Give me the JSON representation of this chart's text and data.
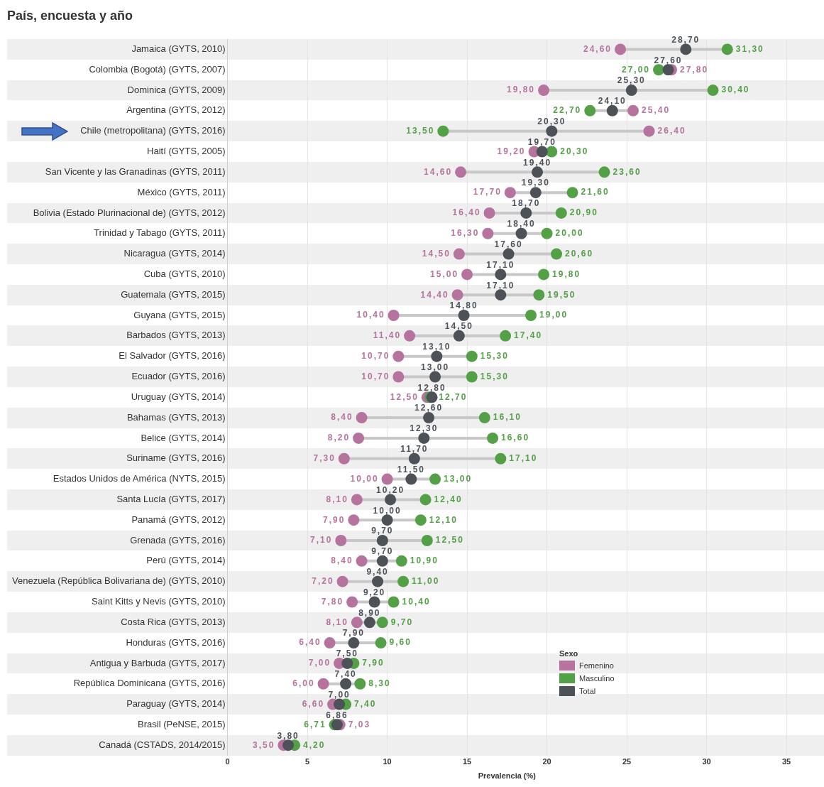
{
  "chart_data": {
    "type": "scatter",
    "orientation": "horizontal",
    "ylabel": "País, encuesta y año",
    "xlabel": "Prevalencia (%)",
    "legend_title": "Sexo",
    "legend": "bottom right",
    "grid": "x",
    "marker": "circle",
    "xlim": [
      0,
      35
    ],
    "xticks": [
      0,
      5,
      10,
      15,
      20,
      25,
      30,
      35
    ],
    "categories": [
      "Jamaica (GYTS, 2010)",
      "Colombia (Bogotá) (GYTS, 2007)",
      "Dominica (GYTS, 2009)",
      "Argentina (GYTS, 2012)",
      "Chile (metropolitana) (GYTS, 2016)",
      "Haití (GYTS, 2005)",
      "San Vicente y las Granadinas (GYTS, 2011)",
      "México (GYTS, 2011)",
      "Bolivia (Estado Plurinacional de) (GYTS, 2012)",
      "Trinidad y Tabago (GYTS, 2011)",
      "Nicaragua (GYTS, 2014)",
      "Cuba (GYTS, 2010)",
      "Guatemala (GYTS, 2015)",
      "Guyana (GYTS, 2015)",
      "Barbados (GYTS, 2013)",
      "El Salvador (GYTS, 2016)",
      "Ecuador (GYTS, 2016)",
      "Uruguay (GYTS, 2014)",
      "Bahamas (GYTS, 2013)",
      "Belice (GYTS, 2014)",
      "Suriname (GYTS, 2016)",
      "Estados Unidos de América (NYTS, 2015)",
      "Santa Lucía (GYTS, 2017)",
      "Panamá (GYTS, 2012)",
      "Grenada (GYTS, 2016)",
      "Perú (GYTS, 2014)",
      "Venezuela (República Bolivariana de) (GYTS, 2010)",
      "Saint Kitts y Nevis (GYTS, 2010)",
      "Costa Rica (GYTS, 2013)",
      "Honduras (GYTS, 2016)",
      "Antigua y Barbuda (GYTS, 2017)",
      "República Dominicana (GYTS, 2016)",
      "Paraguay (GYTS, 2014)",
      "Brasil (PeNSE, 2015)",
      "Canadá (CSTADS, 2014/2015)"
    ],
    "series": [
      {
        "name": "Femenino",
        "color": "#b5739d",
        "values": [
          24.6,
          27.8,
          19.8,
          25.4,
          26.4,
          19.2,
          14.6,
          17.7,
          16.4,
          16.3,
          14.5,
          15.0,
          14.4,
          10.4,
          11.4,
          10.7,
          10.7,
          12.5,
          8.4,
          8.2,
          7.3,
          10.0,
          8.1,
          7.9,
          7.1,
          8.4,
          7.2,
          7.8,
          8.1,
          6.4,
          7.0,
          6.0,
          6.6,
          7.03,
          3.5
        ],
        "value_labels": [
          "24,60",
          "27,80",
          "19,80",
          "25,40",
          "26,40",
          "19,20",
          "14,60",
          "17,70",
          "16,40",
          "16,30",
          "14,50",
          "15,00",
          "14,40",
          "10,40",
          "11,40",
          "10,70",
          "10,70",
          "12,50",
          "8,40",
          "8,20",
          "7,30",
          "10,00",
          "8,10",
          "7,90",
          "7,10",
          "8,40",
          "7,20",
          "7,80",
          "8,10",
          "6,40",
          "7,00",
          "6,00",
          "6,60",
          "7,03",
          "3,50"
        ]
      },
      {
        "name": "Masculino",
        "color": "#53a047",
        "values": [
          31.3,
          27.0,
          30.4,
          22.7,
          13.5,
          20.3,
          23.6,
          21.6,
          20.9,
          20.0,
          20.6,
          19.8,
          19.5,
          19.0,
          17.4,
          15.3,
          15.3,
          12.7,
          16.1,
          16.6,
          17.1,
          13.0,
          12.4,
          12.1,
          12.5,
          10.9,
          11.0,
          10.4,
          9.7,
          9.6,
          7.9,
          8.3,
          7.4,
          6.71,
          4.2
        ],
        "value_labels": [
          "31,30",
          "27,00",
          "30,40",
          "22,70",
          "13,50",
          "20,30",
          "23,60",
          "21,60",
          "20,90",
          "20,00",
          "20,60",
          "19,80",
          "19,50",
          "19,00",
          "17,40",
          "15,30",
          "15,30",
          "12,70",
          "16,10",
          "16,60",
          "17,10",
          "13,00",
          "12,40",
          "12,10",
          "12,50",
          "10,90",
          "11,00",
          "10,40",
          "9,70",
          "9,60",
          "7,90",
          "8,30",
          "7,40",
          "6,71",
          "4,20"
        ]
      },
      {
        "name": "Total",
        "color": "#4d5259",
        "values": [
          28.7,
          27.6,
          25.3,
          24.1,
          20.3,
          19.7,
          19.4,
          19.3,
          18.7,
          18.4,
          17.6,
          17.1,
          17.1,
          14.8,
          14.5,
          13.1,
          13.0,
          12.8,
          12.6,
          12.3,
          11.7,
          11.5,
          10.2,
          10.0,
          9.7,
          9.7,
          9.4,
          9.2,
          8.9,
          7.9,
          7.5,
          7.4,
          7.0,
          6.86,
          3.8
        ],
        "value_labels": [
          "28,70",
          "27,60",
          "25,30",
          "24,10",
          "20,30",
          "19,70",
          "19,40",
          "19,30",
          "18,70",
          "18,40",
          "17,60",
          "17,10",
          "17,10",
          "14,80",
          "14,50",
          "13,10",
          "13,00",
          "12,80",
          "12,60",
          "12,30",
          "11,70",
          "11,50",
          "10,20",
          "10,00",
          "9,70",
          "9,70",
          "9,40",
          "9,20",
          "8,90",
          "7,90",
          "7,50",
          "7,40",
          "7,00",
          "6,86",
          "3,80"
        ]
      }
    ]
  }
}
